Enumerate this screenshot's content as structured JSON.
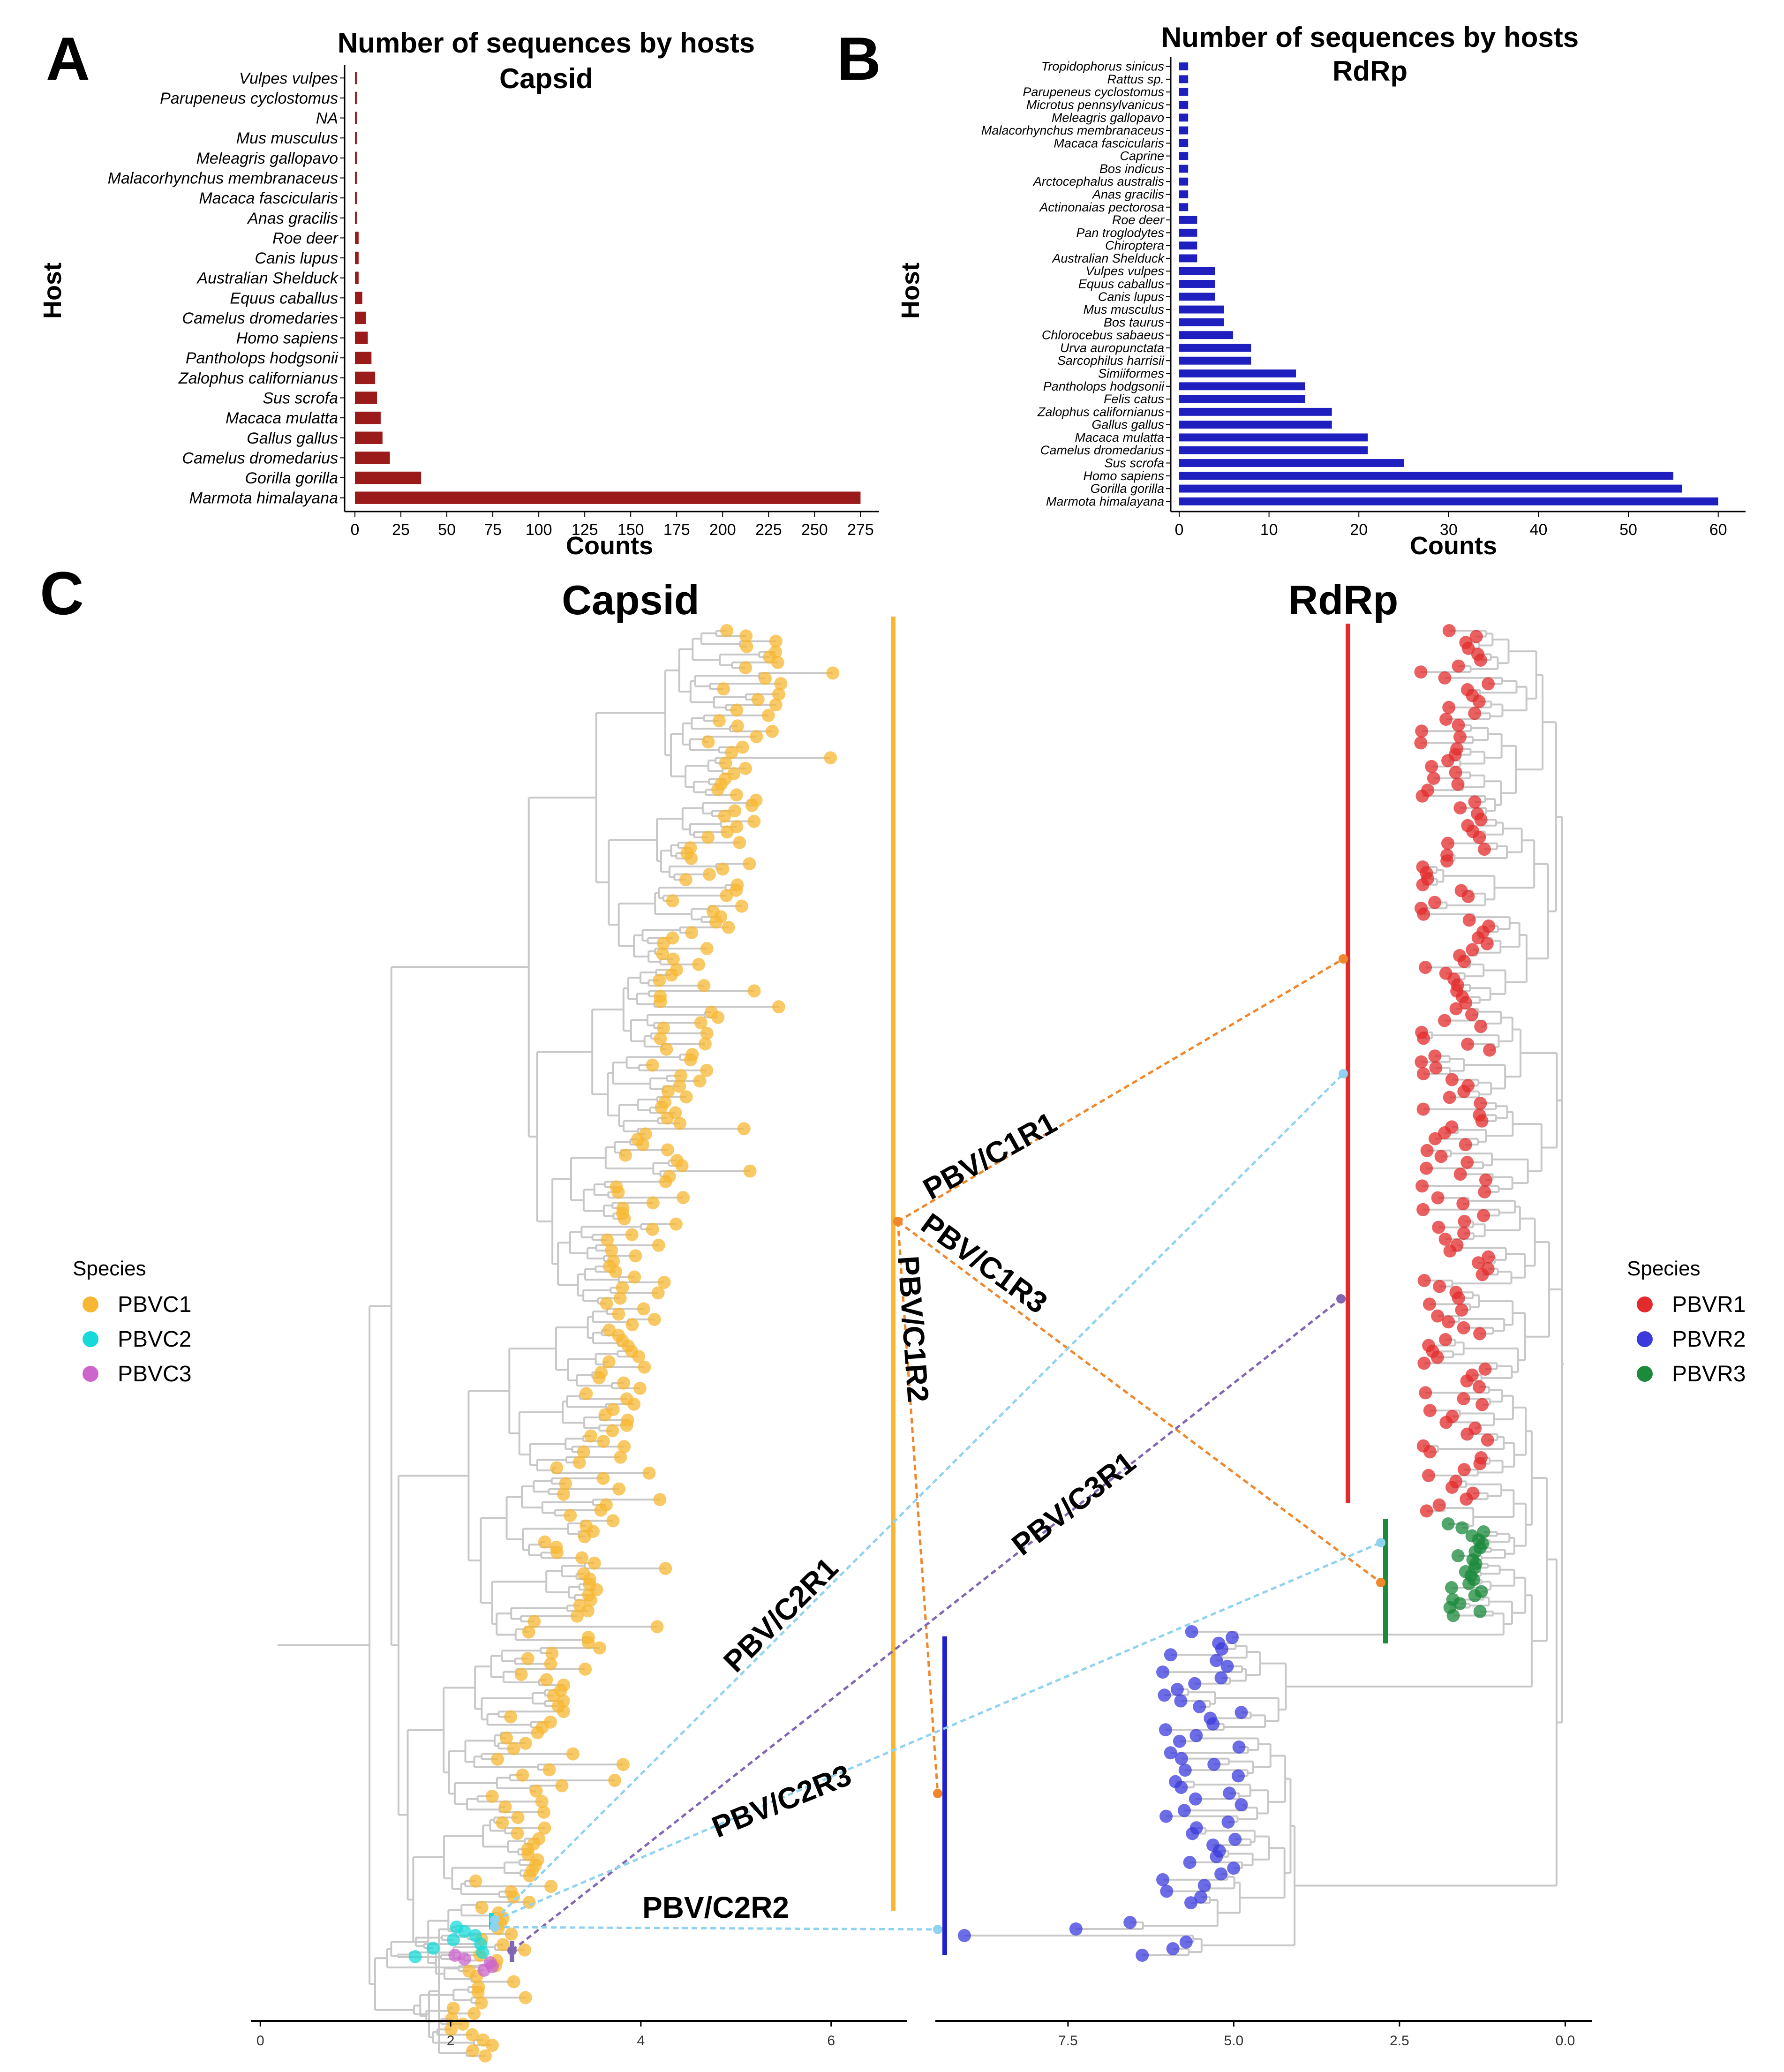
{
  "panels": {
    "A": "A",
    "B": "B",
    "C": "C"
  },
  "chart_data": [
    {
      "id": "A",
      "type": "bar",
      "orientation": "horizontal",
      "title": "Number of sequences by hosts",
      "subtitle": "Capsid",
      "xlabel": "Counts",
      "ylabel": "Host",
      "xlim": [
        0,
        280
      ],
      "xticks": [
        0,
        25,
        50,
        75,
        100,
        125,
        150,
        175,
        200,
        225,
        250,
        275
      ],
      "color": "#9b1b1b",
      "categories": [
        "Vulpes vulpes",
        "Parupeneus cyclostomus",
        "NA",
        "Mus musculus",
        "Meleagris gallopavo",
        "Malacorhynchus membranaceus",
        "Macaca fascicularis",
        "Anas gracilis",
        "Roe deer",
        "Canis  lupus",
        "Australian Shelduck",
        "Equus caballus",
        "Camelus dromedaries",
        "Homo sapiens",
        "Pantholops hodgsonii",
        "Zalophus californianus",
        "Sus scrofa",
        "Macaca mulatta",
        "Gallus gallus",
        "Camelus dromedarius",
        "Gorilla gorilla",
        "Marmota himalayana"
      ],
      "values": [
        1,
        1,
        1,
        1,
        1,
        1,
        1,
        1,
        2,
        2,
        2,
        4,
        6,
        7,
        9,
        11,
        12,
        14,
        15,
        19,
        36,
        275
      ]
    },
    {
      "id": "B",
      "type": "bar",
      "orientation": "horizontal",
      "title": "Number of sequences by hosts",
      "subtitle": "RdRp",
      "xlabel": "Counts",
      "ylabel": "Host",
      "xlim": [
        0,
        62
      ],
      "xticks": [
        0,
        10,
        20,
        30,
        40,
        50,
        60
      ],
      "color": "#1f1fbf",
      "categories": [
        "Tropidophorus sinicus",
        "Rattus sp.",
        "Parupeneus cyclostomus",
        "Microtus pennsylvanicus",
        "Meleagris gallopavo",
        "Malacorhynchus membranaceus",
        "Macaca fascicularis",
        "Caprine",
        "Bos indicus",
        "Arctocephalus australis",
        "Anas gracilis",
        "Actinonaias pectorosa",
        "Roe deer",
        "Pan troglodytes",
        "Chiroptera",
        "Australian Shelduck",
        "Vulpes vulpes",
        "Equus caballus",
        "Canis lupus",
        "Mus musculus",
        "Bos taurus",
        "Chlorocebus sabaeus",
        "Urva auropunctata",
        "Sarcophilus harrisii",
        "Simiiformes",
        "Pantholops hodgsonii",
        "Felis catus",
        "Zalophus californianus",
        "Gallus gallus",
        "Macaca mulatta",
        "Camelus dromedarius",
        "Sus scrofa",
        "Homo sapiens",
        "Gorilla gorilla",
        "Marmota himalayana"
      ],
      "values": [
        1,
        1,
        1,
        1,
        1,
        1,
        1,
        1,
        1,
        1,
        1,
        1,
        2,
        2,
        2,
        2,
        4,
        4,
        4,
        5,
        5,
        6,
        8,
        8,
        13,
        14,
        14,
        17,
        17,
        21,
        21,
        25,
        55,
        56,
        60
      ]
    },
    {
      "id": "C",
      "type": "tanglegram",
      "left_tree": {
        "title": "Capsid",
        "axis_ticks": [
          0,
          2,
          4,
          6
        ],
        "axis_range": [
          -0.1,
          6.8
        ]
      },
      "right_tree": {
        "title": "RdRp",
        "axis_ticks": [
          7.5,
          5.0,
          2.5,
          0.0
        ],
        "axis_range": [
          9.5,
          -0.4
        ]
      },
      "left_legend": {
        "title": "Species",
        "items": [
          {
            "label": "PBVC1",
            "color": "#f7b733"
          },
          {
            "label": "PBVC2",
            "color": "#18d9d9"
          },
          {
            "label": "PBVC3",
            "color": "#cc66cc"
          }
        ]
      },
      "right_legend": {
        "title": "Species",
        "items": [
          {
            "label": "PBVR1",
            "color": "#e32b2b"
          },
          {
            "label": "PBVR2",
            "color": "#3b3bdd"
          },
          {
            "label": "PBVR3",
            "color": "#1b8a3b"
          }
        ]
      },
      "associations": [
        {
          "label": "PBV/C1R1",
          "from": "PBVC1",
          "to": "PBVR1",
          "color": "#f0872b"
        },
        {
          "label": "PBV/C1R3",
          "from": "PBVC1",
          "to": "PBVR3",
          "color": "#f0872b"
        },
        {
          "label": "PBV/C1R2",
          "from": "PBVC1",
          "to": "PBVR2",
          "color": "#f0872b"
        },
        {
          "label": "PBV/C3R1",
          "from": "PBVC3",
          "to": "PBVR1",
          "color": "#8066b3"
        },
        {
          "label": "PBV/C2R1",
          "from": "PBVC2",
          "to": "PBVR1",
          "color": "#8fd3f0"
        },
        {
          "label": "PBV/C2R3",
          "from": "PBVC2",
          "to": "PBVR3",
          "color": "#8fd3f0"
        },
        {
          "label": "PBV/C2R2",
          "from": "PBVC2",
          "to": "PBVR2",
          "color": "#8fd3f0"
        }
      ]
    }
  ]
}
